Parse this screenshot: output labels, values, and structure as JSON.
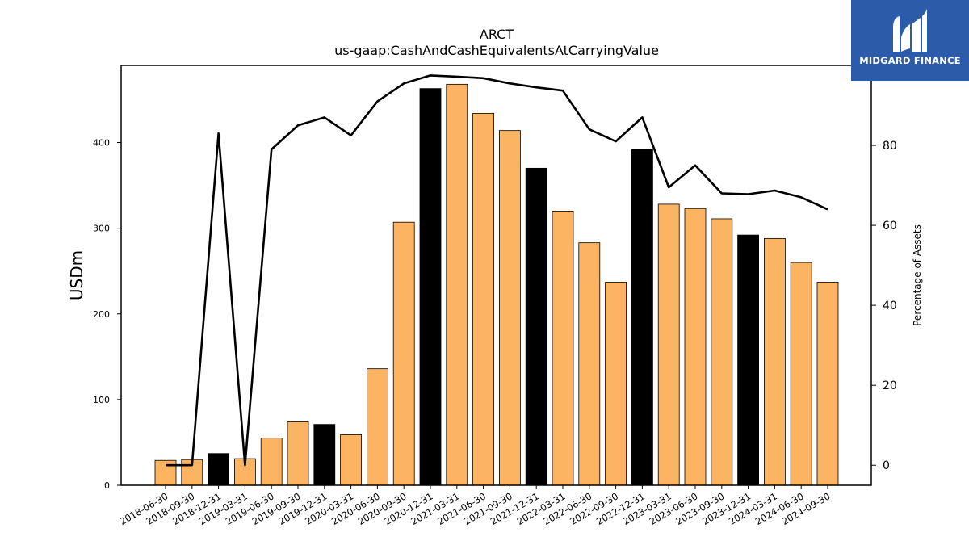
{
  "logo": {
    "text": "MIDGARD FINANCE",
    "background": "#2c5ba9"
  },
  "chart_data": {
    "type": "bar",
    "title": "ARCT",
    "subtitle": "us-gaap:CashAndCashEquivalentsAtCarryingValue",
    "ylabel": "USDm",
    "y2label": "Percentage of Assets",
    "ylim": [
      0,
      490
    ],
    "y2lim": [
      -5,
      100
    ],
    "yticks": [
      0,
      100,
      200,
      300,
      400
    ],
    "y2ticks": [
      0,
      20,
      40,
      60,
      80
    ],
    "colors": {
      "regular": "#fdb462",
      "year_end": "#000000",
      "line": "#000000"
    },
    "categories": [
      "2018-06-30",
      "2018-09-30",
      "2018-12-31",
      "2019-03-31",
      "2019-06-30",
      "2019-09-30",
      "2019-12-31",
      "2020-03-31",
      "2020-06-30",
      "2020-09-30",
      "2020-12-31",
      "2021-03-31",
      "2021-06-30",
      "2021-09-30",
      "2021-12-31",
      "2022-03-31",
      "2022-06-30",
      "2022-09-30",
      "2022-12-31",
      "2023-03-31",
      "2023-06-30",
      "2023-09-30",
      "2023-12-31",
      "2024-03-31",
      "2024-06-30",
      "2024-09-30"
    ],
    "series": [
      {
        "type": "bar",
        "values": [
          29,
          30,
          37,
          31,
          55,
          74,
          71,
          59,
          136,
          307,
          463,
          468,
          434,
          414,
          370,
          320,
          283,
          237,
          392,
          328,
          323,
          311,
          292,
          288,
          260,
          237
        ],
        "highlight": [
          false,
          false,
          true,
          false,
          false,
          false,
          true,
          false,
          false,
          false,
          true,
          false,
          false,
          false,
          true,
          false,
          false,
          false,
          true,
          false,
          false,
          false,
          true,
          false,
          false,
          false
        ]
      },
      {
        "type": "line",
        "axis": "right",
        "values": [
          0,
          0,
          83,
          0,
          79,
          85,
          87,
          82.5,
          91,
          95.5,
          97.5,
          97.2,
          96.8,
          95.5,
          94.5,
          93.7,
          84,
          81,
          87,
          69.5,
          75,
          68,
          67.8,
          68.7,
          67,
          64
        ]
      }
    ]
  }
}
